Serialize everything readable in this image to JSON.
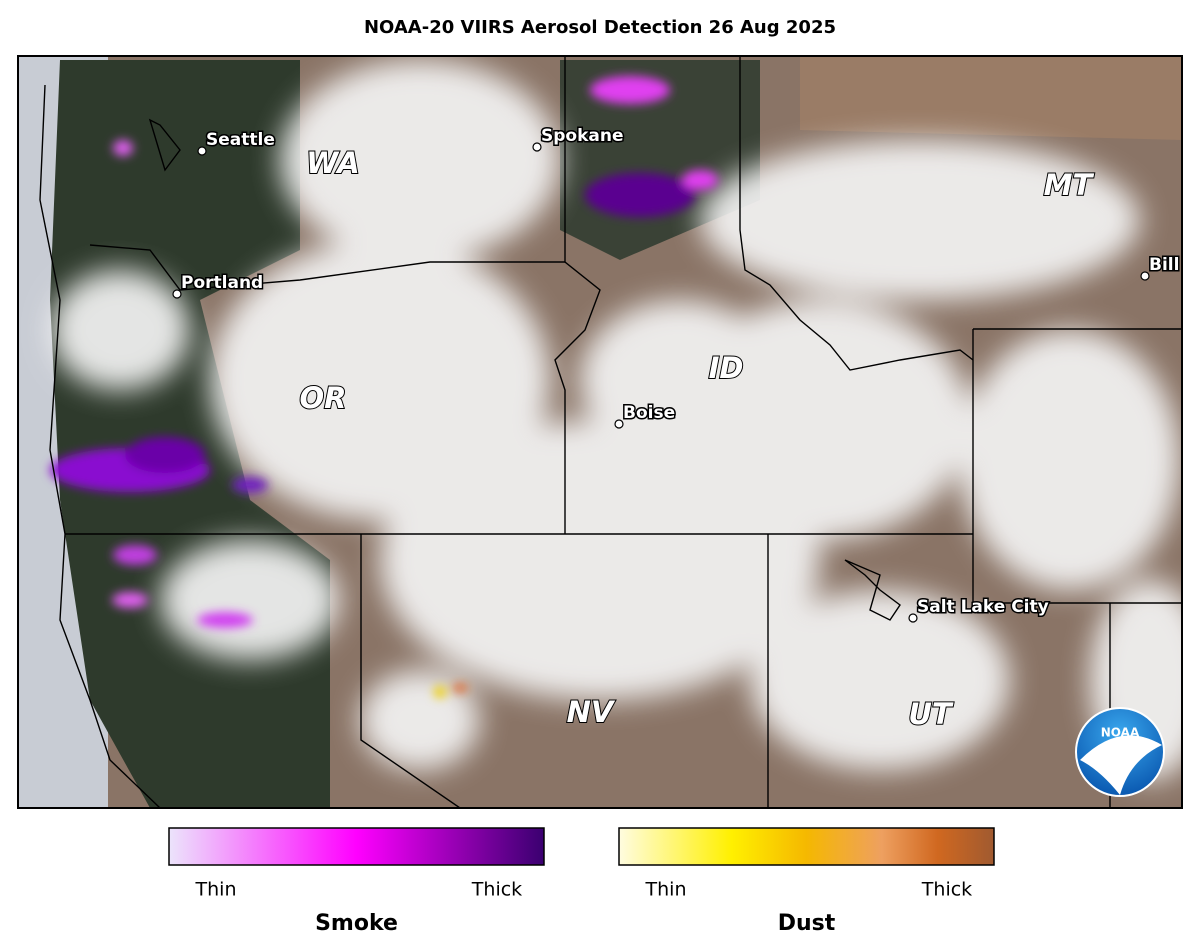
{
  "title": "NOAA-20 VIIRS Aerosol Detection  26 Aug 2025",
  "cities": [
    "Seattle",
    "Spokane",
    "Portland",
    "Boise",
    "Salt Lake City",
    "Bill"
  ],
  "states": [
    "WA",
    "MT",
    "ID",
    "OR",
    "NV",
    "UT"
  ],
  "legend": [
    {
      "name": "Smoke",
      "low": "Thin",
      "high": "Thick"
    },
    {
      "name": "Dust",
      "low": "Thin",
      "high": "Thick"
    }
  ],
  "logo": "NOAA"
}
